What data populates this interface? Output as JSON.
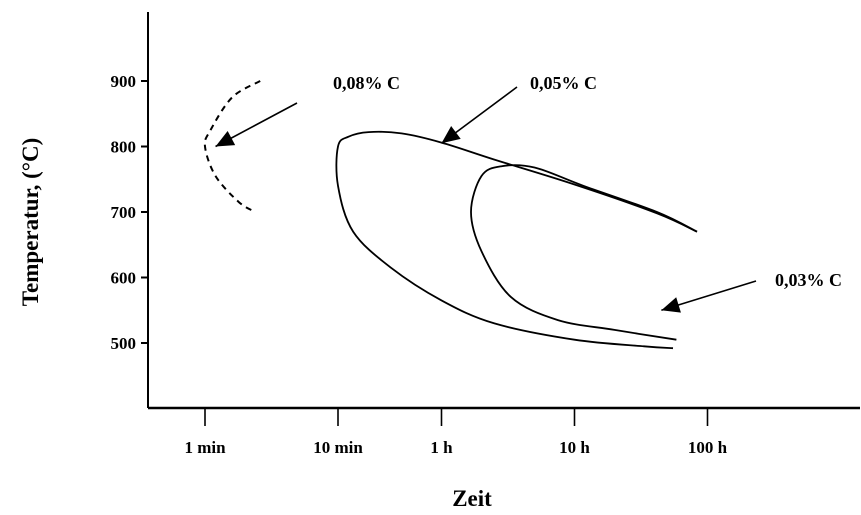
{
  "chart_data": {
    "type": "line",
    "title": "",
    "xlabel": "Zeit",
    "ylabel": "Temperatur, (°C)",
    "x_scale": "log",
    "x_unit": "minutes",
    "x_ticks": [
      {
        "value": 1,
        "label": "1 min"
      },
      {
        "value": 10,
        "label": "10 min"
      },
      {
        "value": 60,
        "label": "1 h"
      },
      {
        "value": 600,
        "label": "10 h"
      },
      {
        "value": 6000,
        "label": "100 h"
      }
    ],
    "y_ticks": [
      500,
      600,
      700,
      800,
      900
    ],
    "xlim": [
      0.5,
      60000
    ],
    "ylim": [
      400,
      1000
    ],
    "grid": false,
    "series": [
      {
        "name": "0,08% C",
        "style": "dashed",
        "points": [
          [
            2.6,
            900
          ],
          [
            1.6,
            875
          ],
          [
            1.1,
            825
          ],
          [
            1.0,
            800
          ],
          [
            1.2,
            755
          ],
          [
            1.8,
            715
          ],
          [
            2.4,
            700
          ]
        ]
      },
      {
        "name": "0,05% C",
        "style": "solid",
        "points": [
          [
            5000,
            670
          ],
          [
            2500,
            698
          ],
          [
            600,
            742
          ],
          [
            150,
            780
          ],
          [
            60,
            806
          ],
          [
            30,
            820
          ],
          [
            17,
            822
          ],
          [
            12,
            815
          ],
          [
            10,
            800
          ],
          [
            10,
            740
          ],
          [
            13,
            670
          ],
          [
            25,
            615
          ],
          [
            60,
            565
          ],
          [
            150,
            530
          ],
          [
            600,
            505
          ],
          [
            2000,
            495
          ],
          [
            3300,
            492
          ]
        ]
      },
      {
        "name": "0,03% C",
        "style": "solid",
        "points": [
          [
            5000,
            670
          ],
          [
            2500,
            700
          ],
          [
            700,
            740
          ],
          [
            300,
            768
          ],
          [
            170,
            770
          ],
          [
            120,
            755
          ],
          [
            100,
            700
          ],
          [
            120,
            640
          ],
          [
            200,
            570
          ],
          [
            450,
            535
          ],
          [
            1200,
            520
          ],
          [
            3500,
            505
          ]
        ]
      }
    ],
    "annotations": [
      {
        "text": "0,08% C",
        "points_to": {
          "x": 1.2,
          "y": 800
        }
      },
      {
        "text": "0,05% C",
        "points_to": {
          "x": 60,
          "y": 805
        }
      },
      {
        "text": "0,03% C",
        "points_to": {
          "x": 2700,
          "y": 550
        }
      }
    ]
  }
}
